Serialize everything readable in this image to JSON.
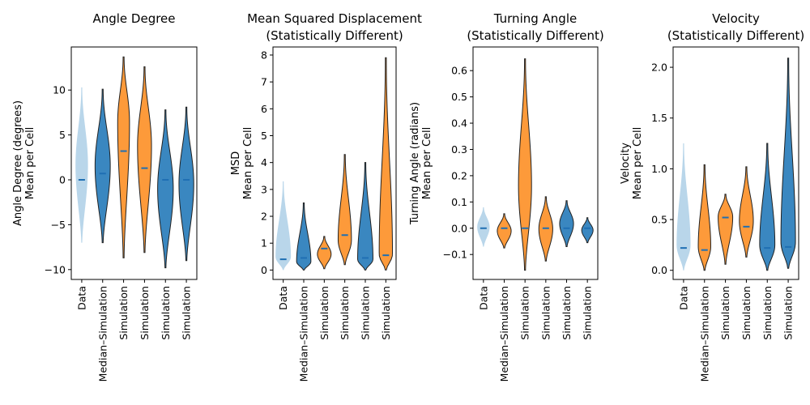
{
  "chart_data": [
    {
      "type": "violin",
      "title": [
        "Angle Degree"
      ],
      "ylabel": [
        "Angle Degree (degrees)",
        "Mean per Cell"
      ],
      "ylim": [
        -11.1,
        14.8
      ],
      "yticks": [
        -10,
        -5,
        0,
        5,
        10
      ],
      "categories": [
        "Data",
        "Median–Simulation",
        "Simulation",
        "Simulation",
        "Simulation",
        "Simulation"
      ],
      "colors": [
        "#b9d6ea",
        "#3a87c0",
        "#fd9a3a",
        "#fd9a3a",
        "#3a87c0",
        "#3a87c0"
      ],
      "medians": [
        0.0,
        0.7,
        3.2,
        1.3,
        0.0,
        0.0
      ],
      "ranges": [
        [
          -7.0,
          10.3
        ],
        [
          -7.0,
          10.1
        ],
        [
          -8.7,
          13.7
        ],
        [
          -8.1,
          12.6
        ],
        [
          -9.8,
          7.8
        ],
        [
          -9.0,
          8.1
        ]
      ],
      "widths": [
        0.55,
        0.68,
        0.52,
        0.62,
        0.7,
        0.66
      ],
      "skews": [
        0,
        0,
        0.35,
        0.15,
        0,
        0
      ]
    },
    {
      "type": "violin",
      "title": [
        "Mean Squared Displacement",
        "(Statistically Different)"
      ],
      "ylabel": [
        "MSD",
        "Mean per Cell"
      ],
      "ylim": [
        -0.35,
        8.3
      ],
      "yticks": [
        0,
        1,
        2,
        3,
        4,
        5,
        6,
        7,
        8
      ],
      "categories": [
        "Data",
        "Median–Simulation",
        "Simulation",
        "Simulation",
        "Simulation",
        "Simulation"
      ],
      "colors": [
        "#b9d6ea",
        "#3a87c0",
        "#fd9a3a",
        "#fd9a3a",
        "#3a87c0",
        "#fd9a3a"
      ],
      "medians": [
        0.4,
        0.45,
        0.8,
        1.3,
        0.45,
        0.55
      ],
      "ranges": [
        [
          0.0,
          3.3
        ],
        [
          0.0,
          2.5
        ],
        [
          0.05,
          1.25
        ],
        [
          0.2,
          4.3
        ],
        [
          0.0,
          4.0
        ],
        [
          0.0,
          7.9
        ]
      ],
      "widths": [
        0.7,
        0.65,
        0.62,
        0.6,
        0.7,
        0.6
      ],
      "skews": [
        -0.7,
        -0.75,
        -0.1,
        -0.55,
        -0.8,
        -0.85
      ]
    },
    {
      "type": "violin",
      "title": [
        "Turning Angle",
        "(Statistically Different)"
      ],
      "ylabel": [
        "Turning Angle (radians)",
        "Mean per Cell"
      ],
      "ylim": [
        -0.195,
        0.69
      ],
      "yticks": [
        -0.1,
        0.0,
        0.1,
        0.2,
        0.3,
        0.4,
        0.5,
        0.6
      ],
      "ytick_labels": [
        "−0.1",
        "0.0",
        "0.1",
        "0.2",
        "0.3",
        "0.4",
        "0.5",
        "0.6"
      ],
      "categories": [
        "Data",
        "Median–Simulation",
        "Simulation",
        "Simulation",
        "Simulation",
        "Simulation"
      ],
      "colors": [
        "#b9d6ea",
        "#fd9a3a",
        "#fd9a3a",
        "#fd9a3a",
        "#3a87c0",
        "#3a87c0"
      ],
      "medians": [
        0.0,
        0.0,
        0.0,
        0.0,
        0.0,
        0.0
      ],
      "ranges": [
        [
          -0.07,
          0.08
        ],
        [
          -0.075,
          0.055
        ],
        [
          -0.16,
          0.645
        ],
        [
          -0.125,
          0.12
        ],
        [
          -0.07,
          0.105
        ],
        [
          -0.055,
          0.04
        ]
      ],
      "widths": [
        0.55,
        0.62,
        0.58,
        0.62,
        0.62,
        0.5
      ],
      "skews": [
        0,
        0,
        -0.2,
        0,
        0,
        0
      ]
    },
    {
      "type": "violin",
      "title": [
        "Velocity",
        "(Statistically Different)"
      ],
      "ylabel": [
        "Velocity",
        "Mean per Cell"
      ],
      "ylim": [
        -0.09,
        2.2
      ],
      "yticks": [
        0.0,
        0.5,
        1.0,
        1.5,
        2.0
      ],
      "ytick_labels": [
        "0.0",
        "0.5",
        "1.0",
        "1.5",
        "2.0"
      ],
      "categories": [
        "Data",
        "Median–Simulation",
        "Simulation",
        "Simulation",
        "Simulation",
        "Simulation"
      ],
      "colors": [
        "#b9d6ea",
        "#fd9a3a",
        "#fd9a3a",
        "#fd9a3a",
        "#3a87c0",
        "#3a87c0"
      ],
      "medians": [
        0.22,
        0.2,
        0.52,
        0.43,
        0.22,
        0.23
      ],
      "ranges": [
        [
          0.0,
          1.25
        ],
        [
          0.0,
          1.04
        ],
        [
          0.06,
          0.75
        ],
        [
          0.13,
          1.02
        ],
        [
          0.0,
          1.25
        ],
        [
          0.02,
          2.09
        ]
      ],
      "widths": [
        0.62,
        0.55,
        0.65,
        0.62,
        0.68,
        0.65
      ],
      "skews": [
        -0.6,
        -0.55,
        0.35,
        -0.2,
        -0.6,
        -0.75
      ]
    }
  ]
}
